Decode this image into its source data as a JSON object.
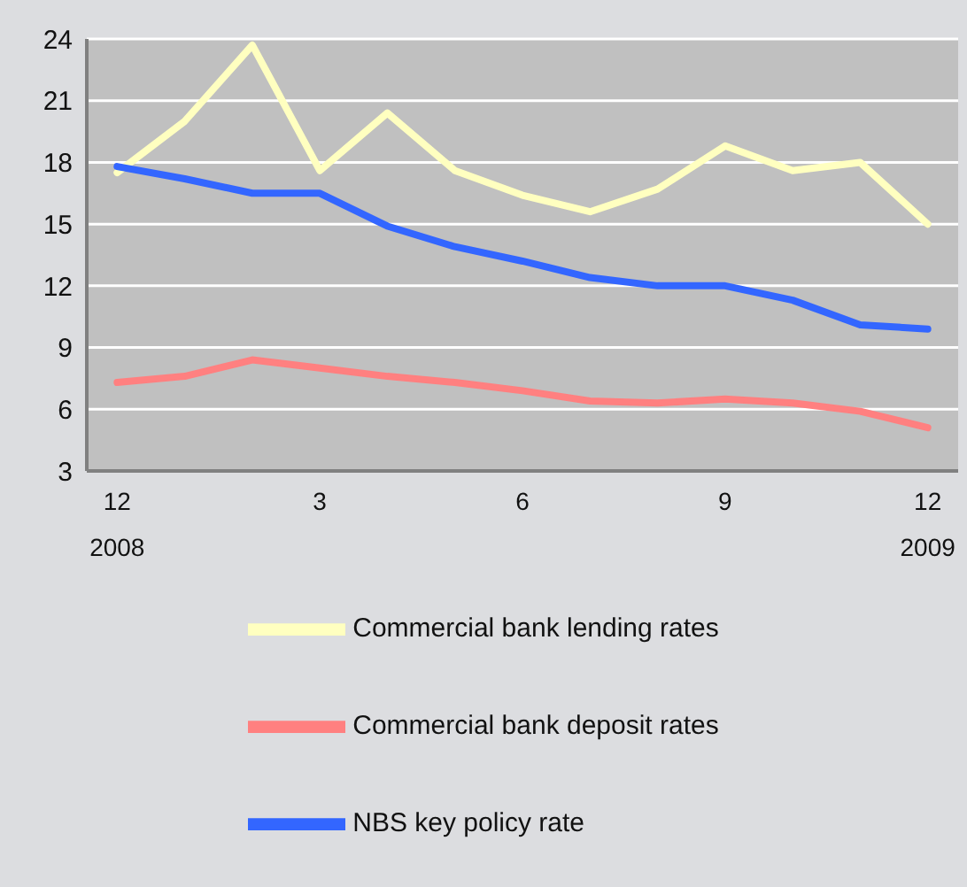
{
  "chart_data": {
    "type": "line",
    "categories": [
      "12\n2008",
      null,
      null,
      "3",
      null,
      null,
      "6",
      null,
      null,
      "9",
      null,
      null,
      "12\n2009"
    ],
    "series": [
      {
        "name": "Commercial bank lending rates",
        "color": "#ffffc0",
        "values": [
          17.5,
          20.0,
          23.7,
          17.6,
          20.4,
          17.6,
          16.4,
          15.6,
          16.7,
          18.8,
          17.6,
          18.0,
          15.0
        ]
      },
      {
        "name": "Commercial bank deposit rates",
        "color": "#ff8080",
        "values": [
          7.3,
          7.6,
          8.4,
          8.0,
          7.6,
          7.3,
          6.9,
          6.4,
          6.3,
          6.5,
          6.3,
          5.9,
          5.1
        ]
      },
      {
        "name": "NBS key policy rate",
        "color": "#3366ff",
        "values": [
          17.8,
          17.2,
          16.5,
          16.5,
          14.9,
          13.9,
          13.2,
          12.4,
          12.0,
          12.0,
          11.3,
          10.1,
          9.9
        ]
      }
    ],
    "ylim": [
      3,
      24
    ],
    "yticks": [
      3,
      6,
      9,
      12,
      15,
      18,
      21,
      24
    ],
    "grid": "y",
    "legend": "bottom",
    "marker": "none",
    "line_style": "solid"
  }
}
